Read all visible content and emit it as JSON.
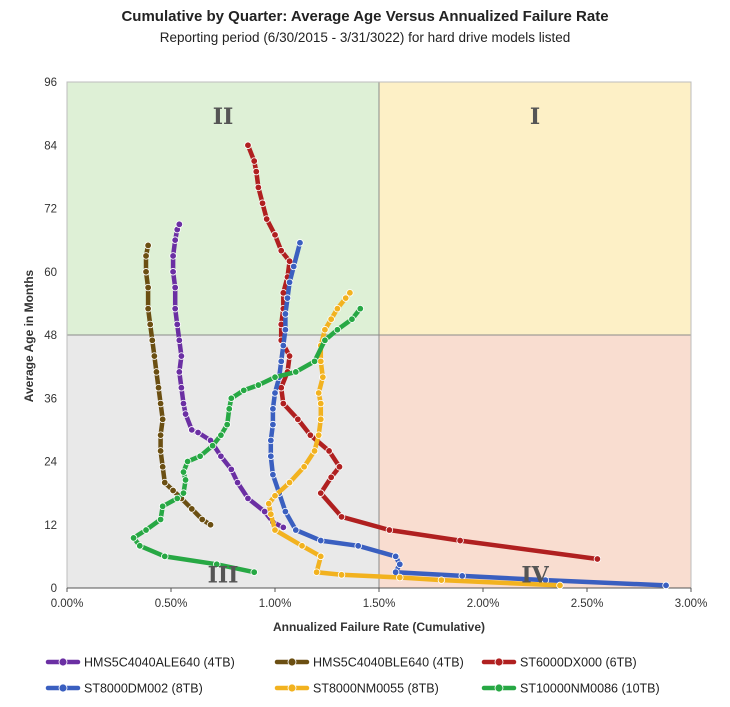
{
  "chart_data": {
    "type": "line",
    "title": "Cumulative by Quarter: Average Age Versus Annualized Failure Rate",
    "subtitle": "Reporting period (6/30/2015 - 3/31/3022) for hard drive models listed",
    "xlabel": "Annualized Failure Rate (Cumulative)",
    "ylabel": "Average Age in Months",
    "xlim": [
      0,
      3.0
    ],
    "ylim": [
      0,
      96
    ],
    "x_ticks": [
      "0.00%",
      "0.50%",
      "1.00%",
      "1.50%",
      "2.00%",
      "2.50%",
      "3.00%"
    ],
    "y_ticks": [
      "0",
      "12",
      "24",
      "36",
      "48",
      "60",
      "72",
      "84",
      "96"
    ],
    "quadrants": [
      {
        "label": "I",
        "color": "#fdf0c6"
      },
      {
        "label": "II",
        "color": "#def0d6"
      },
      {
        "label": "III",
        "color": "#e9e9e9"
      },
      {
        "label": "IV",
        "color": "#f9ddd0"
      }
    ],
    "quadrant_split": {
      "x": 1.5,
      "y": 48
    },
    "legend_position": "bottom",
    "series": [
      {
        "name": "HMS5C4040ALE640 (4TB)",
        "color": "#6b2fa3",
        "points": [
          [
            1.04,
            11.5
          ],
          [
            0.99,
            12.5
          ],
          [
            0.95,
            14.5
          ],
          [
            0.87,
            17
          ],
          [
            0.82,
            20
          ],
          [
            0.79,
            22.5
          ],
          [
            0.74,
            25
          ],
          [
            0.69,
            28
          ],
          [
            0.63,
            29.5
          ],
          [
            0.6,
            30
          ],
          [
            0.57,
            33
          ],
          [
            0.56,
            35
          ],
          [
            0.55,
            38
          ],
          [
            0.54,
            41
          ],
          [
            0.55,
            44
          ],
          [
            0.54,
            47
          ],
          [
            0.53,
            50
          ],
          [
            0.52,
            53
          ],
          [
            0.52,
            57
          ],
          [
            0.51,
            60
          ],
          [
            0.51,
            63
          ],
          [
            0.52,
            66
          ],
          [
            0.53,
            68
          ],
          [
            0.54,
            69
          ]
        ]
      },
      {
        "name": "HMS5C4040BLE640 (4TB)",
        "color": "#6b4f12",
        "points": [
          [
            0.69,
            12
          ],
          [
            0.65,
            13
          ],
          [
            0.6,
            15
          ],
          [
            0.55,
            17
          ],
          [
            0.51,
            18.5
          ],
          [
            0.47,
            20
          ],
          [
            0.46,
            23
          ],
          [
            0.45,
            26
          ],
          [
            0.45,
            29
          ],
          [
            0.46,
            32
          ],
          [
            0.45,
            35
          ],
          [
            0.44,
            38
          ],
          [
            0.43,
            41
          ],
          [
            0.42,
            44
          ],
          [
            0.41,
            47
          ],
          [
            0.4,
            50
          ],
          [
            0.39,
            53
          ],
          [
            0.39,
            57
          ],
          [
            0.38,
            60
          ],
          [
            0.38,
            63
          ],
          [
            0.39,
            65
          ]
        ]
      },
      {
        "name": "ST6000DX000 (6TB)",
        "color": "#b02020",
        "points": [
          [
            2.55,
            5.5
          ],
          [
            1.89,
            9
          ],
          [
            1.55,
            11
          ],
          [
            1.32,
            13.5
          ],
          [
            1.22,
            18
          ],
          [
            1.27,
            21
          ],
          [
            1.31,
            23
          ],
          [
            1.26,
            26
          ],
          [
            1.17,
            29
          ],
          [
            1.11,
            32
          ],
          [
            1.04,
            35
          ],
          [
            1.03,
            38
          ],
          [
            1.06,
            41
          ],
          [
            1.07,
            44
          ],
          [
            1.03,
            47
          ],
          [
            1.03,
            50
          ],
          [
            1.04,
            53
          ],
          [
            1.04,
            56
          ],
          [
            1.06,
            59
          ],
          [
            1.07,
            62
          ],
          [
            1.03,
            64
          ],
          [
            1.0,
            67
          ],
          [
            0.96,
            70
          ],
          [
            0.94,
            73
          ],
          [
            0.92,
            76
          ],
          [
            0.91,
            79
          ],
          [
            0.9,
            81
          ],
          [
            0.87,
            84
          ]
        ]
      },
      {
        "name": "ST8000DM002 (8TB)",
        "color": "#3a5fc0",
        "points": [
          [
            2.88,
            0.5
          ],
          [
            2.3,
            1.5
          ],
          [
            1.9,
            2.3
          ],
          [
            1.58,
            3
          ],
          [
            1.6,
            4.5
          ],
          [
            1.58,
            6
          ],
          [
            1.4,
            8
          ],
          [
            1.22,
            9
          ],
          [
            1.1,
            11
          ],
          [
            1.05,
            14.5
          ],
          [
            1.02,
            18
          ],
          [
            0.99,
            21.5
          ],
          [
            0.98,
            25
          ],
          [
            0.98,
            28
          ],
          [
            0.99,
            31
          ],
          [
            0.99,
            34
          ],
          [
            1.0,
            37
          ],
          [
            1.02,
            40
          ],
          [
            1.03,
            43
          ],
          [
            1.04,
            46
          ],
          [
            1.05,
            49
          ],
          [
            1.05,
            52
          ],
          [
            1.06,
            55
          ],
          [
            1.07,
            58
          ],
          [
            1.09,
            61
          ],
          [
            1.12,
            65.5
          ]
        ]
      },
      {
        "name": "ST8000NM0055 (8TB)",
        "color": "#f2b21f",
        "points": [
          [
            2.37,
            0.5
          ],
          [
            1.8,
            1.5
          ],
          [
            1.6,
            2
          ],
          [
            1.32,
            2.5
          ],
          [
            1.2,
            3
          ],
          [
            1.22,
            6
          ],
          [
            1.13,
            8
          ],
          [
            1.0,
            11
          ],
          [
            0.98,
            14
          ],
          [
            0.97,
            16
          ],
          [
            1.0,
            17.5
          ],
          [
            1.07,
            20
          ],
          [
            1.14,
            23
          ],
          [
            1.19,
            26
          ],
          [
            1.21,
            29
          ],
          [
            1.22,
            32
          ],
          [
            1.22,
            35
          ],
          [
            1.21,
            37
          ],
          [
            1.23,
            40
          ],
          [
            1.22,
            43
          ],
          [
            1.22,
            46
          ],
          [
            1.24,
            49
          ],
          [
            1.27,
            51
          ],
          [
            1.3,
            53
          ],
          [
            1.34,
            55
          ],
          [
            1.36,
            56
          ]
        ]
      },
      {
        "name": "ST10000NM0086 (10TB)",
        "color": "#27a844",
        "points": [
          [
            0.9,
            3
          ],
          [
            0.72,
            4.5
          ],
          [
            0.47,
            6
          ],
          [
            0.35,
            8
          ],
          [
            0.32,
            9.5
          ],
          [
            0.38,
            11
          ],
          [
            0.45,
            13
          ],
          [
            0.46,
            15.5
          ],
          [
            0.53,
            17
          ],
          [
            0.56,
            18
          ],
          [
            0.57,
            20.5
          ],
          [
            0.56,
            22
          ],
          [
            0.58,
            24
          ],
          [
            0.64,
            25
          ],
          [
            0.7,
            27
          ],
          [
            0.74,
            29
          ],
          [
            0.77,
            31
          ],
          [
            0.78,
            34
          ],
          [
            0.79,
            36
          ],
          [
            0.85,
            37.5
          ],
          [
            0.92,
            38.5
          ],
          [
            1.0,
            40
          ],
          [
            1.1,
            41
          ],
          [
            1.19,
            43
          ],
          [
            1.24,
            47
          ],
          [
            1.3,
            49
          ],
          [
            1.37,
            51
          ],
          [
            1.41,
            53
          ]
        ]
      }
    ]
  }
}
